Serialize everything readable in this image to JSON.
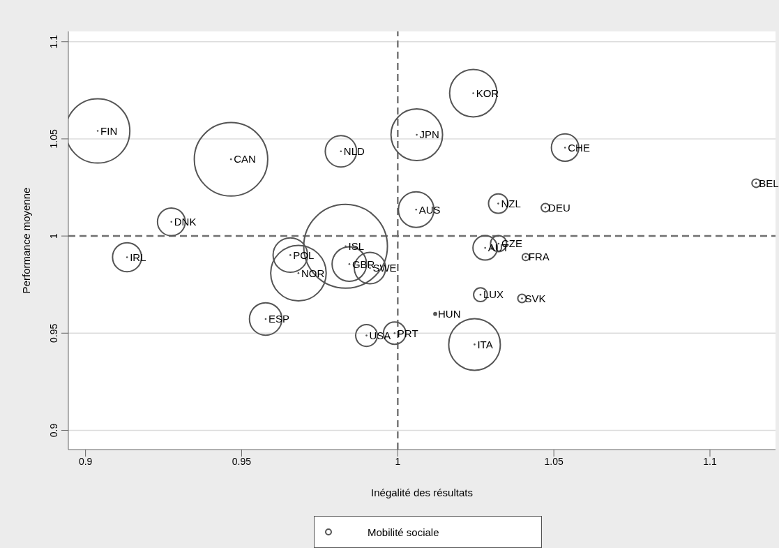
{
  "chart_data": {
    "type": "bubble",
    "xlabel": "Inégalité des résultats",
    "ylabel": "Performance moyenne",
    "x": [
      0.9039,
      0.9466,
      0.9818,
      0.9275,
      0.9133,
      0.9656,
      0.9682,
      0.9833,
      0.9845,
      0.9911,
      0.9577,
      0.99,
      0.999,
      1.012,
      1.0246,
      1.0265,
      1.0398,
      1.028,
      1.0323,
      1.041,
      1.0242,
      1.0061,
      1.0536,
      1.0059,
      1.0322,
      1.0473,
      1.1148
    ],
    "series": [
      {
        "name": "Mobilité sociale",
        "color": "#555555",
        "values": [
          1.0541,
          1.0395,
          1.0436,
          1.0073,
          0.9891,
          0.9902,
          0.9809,
          0.9947,
          0.9856,
          0.9835,
          0.9573,
          0.9488,
          0.95,
          0.9599,
          0.9442,
          0.9698,
          0.9679,
          0.9939,
          0.9961,
          0.9892,
          1.0735,
          1.0521,
          1.0455,
          1.0136,
          1.0167,
          1.0146,
          1.0272
        ],
        "sizes": [
          0.59,
          0.77,
          0.14,
          0.11,
          0.12,
          0.17,
          0.44,
          1,
          0.17,
          0.14,
          0.15,
          0.067,
          0.071,
          0.001,
          0.38,
          0.027,
          0.01,
          0.085,
          0.037,
          0.007,
          0.32,
          0.38,
          0.107,
          0.18,
          0.054,
          0.01,
          0.01
        ]
      }
    ],
    "xlim": [
      0.8945,
      1.121
    ],
    "ylim": [
      0.8901,
      1.1053
    ],
    "xticks": [
      0.9,
      0.95,
      1,
      1.05,
      1.1
    ],
    "yticks": [
      0.9,
      0.95,
      1,
      1.05,
      1.1
    ],
    "grid": "y",
    "legend": "bottom",
    "marker": "circle",
    "ref_lines": [
      {
        "axis": "x",
        "value": 1,
        "line_style": "dashed",
        "color": "#777777"
      },
      {
        "axis": "y",
        "value": 1,
        "line_style": "dashed",
        "color": "#707070"
      }
    ],
    "annotations": [
      {
        "text": "FIN",
        "x": 0.9039,
        "y": 1.0541
      },
      {
        "text": "CAN",
        "x": 0.9466,
        "y": 1.0395
      },
      {
        "text": "NLD",
        "x": 0.9818,
        "y": 1.0436
      },
      {
        "text": "DNK",
        "x": 0.9275,
        "y": 1.0073
      },
      {
        "text": "IRL",
        "x": 0.9133,
        "y": 0.9891
      },
      {
        "text": "POL",
        "x": 0.9656,
        "y": 0.9902
      },
      {
        "text": "NOR",
        "x": 0.9682,
        "y": 0.9809
      },
      {
        "text": "ISL",
        "x": 0.9833,
        "y": 0.9947
      },
      {
        "text": "GBR",
        "x": 0.9845,
        "y": 0.9856
      },
      {
        "text": "SWE",
        "x": 0.9911,
        "y": 0.9835
      },
      {
        "text": "ESP",
        "x": 0.9577,
        "y": 0.9573
      },
      {
        "text": "USA",
        "x": 0.99,
        "y": 0.9488
      },
      {
        "text": "PRT",
        "x": 0.999,
        "y": 0.95
      },
      {
        "text": "HUN",
        "x": 1.012,
        "y": 0.9599
      },
      {
        "text": "ITA",
        "x": 1.0246,
        "y": 0.9442
      },
      {
        "text": "LUX",
        "x": 1.0265,
        "y": 0.9698
      },
      {
        "text": "SVK",
        "x": 1.0398,
        "y": 0.9679
      },
      {
        "text": "AUT",
        "x": 1.028,
        "y": 0.9939
      },
      {
        "text": "CZE",
        "x": 1.0323,
        "y": 0.9961
      },
      {
        "text": "FRA",
        "x": 1.041,
        "y": 0.9892
      },
      {
        "text": "KOR",
        "x": 1.0242,
        "y": 1.0735
      },
      {
        "text": "JPN",
        "x": 1.0061,
        "y": 1.0521
      },
      {
        "text": "CHE",
        "x": 1.0536,
        "y": 1.0455
      },
      {
        "text": "AUS",
        "x": 1.0059,
        "y": 1.0136
      },
      {
        "text": "NZL",
        "x": 1.0322,
        "y": 1.0167
      },
      {
        "text": "DEU",
        "x": 1.0473,
        "y": 1.0146
      },
      {
        "text": "BEL",
        "x": 1.1148,
        "y": 1.0272
      }
    ]
  }
}
